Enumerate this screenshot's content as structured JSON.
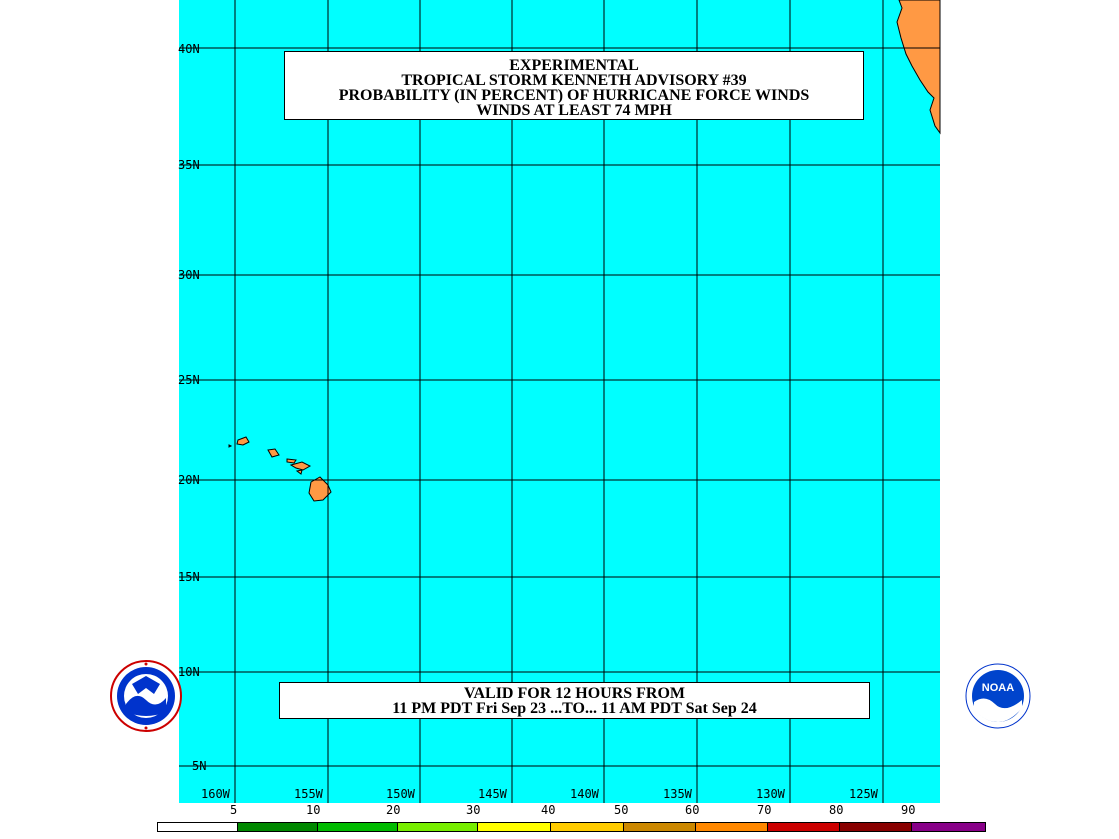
{
  "title": {
    "line1": "EXPERIMENTAL",
    "line2": "TROPICAL STORM KENNETH ADVISORY #39",
    "line3": "PROBABILITY (IN PERCENT) OF HURRICANE FORCE WINDS",
    "line4": "WINDS AT LEAST 74 MPH"
  },
  "valid": {
    "line1": "VALID FOR 12 HOURS FROM",
    "line2": "11 PM PDT Fri Sep 23 ...TO... 11 AM PDT Sat Sep 24"
  },
  "latitudes": [
    "40N",
    "35N",
    "30N",
    "25N",
    "20N",
    "15N",
    "10N",
    "5N"
  ],
  "longitudes": [
    "160W",
    "155W",
    "150W",
    "145W",
    "140W",
    "135W",
    "130W",
    "125W"
  ],
  "legend": {
    "labels": [
      "5",
      "10",
      "20",
      "30",
      "40",
      "50",
      "60",
      "70",
      "80",
      "90"
    ],
    "colors": [
      "#ffffff",
      "#008800",
      "#00bb00",
      "#77ee00",
      "#ffff00",
      "#ffcc00",
      "#cc8800",
      "#ff8800",
      "#cc0000",
      "#880000",
      "#880088"
    ]
  },
  "colors": {
    "ocean": "#00ffff",
    "land": "#ff9944",
    "grid": "#000000"
  },
  "logos": {
    "left": "nws-logo",
    "right": "noaa-logo",
    "right_text": "NOAA"
  }
}
